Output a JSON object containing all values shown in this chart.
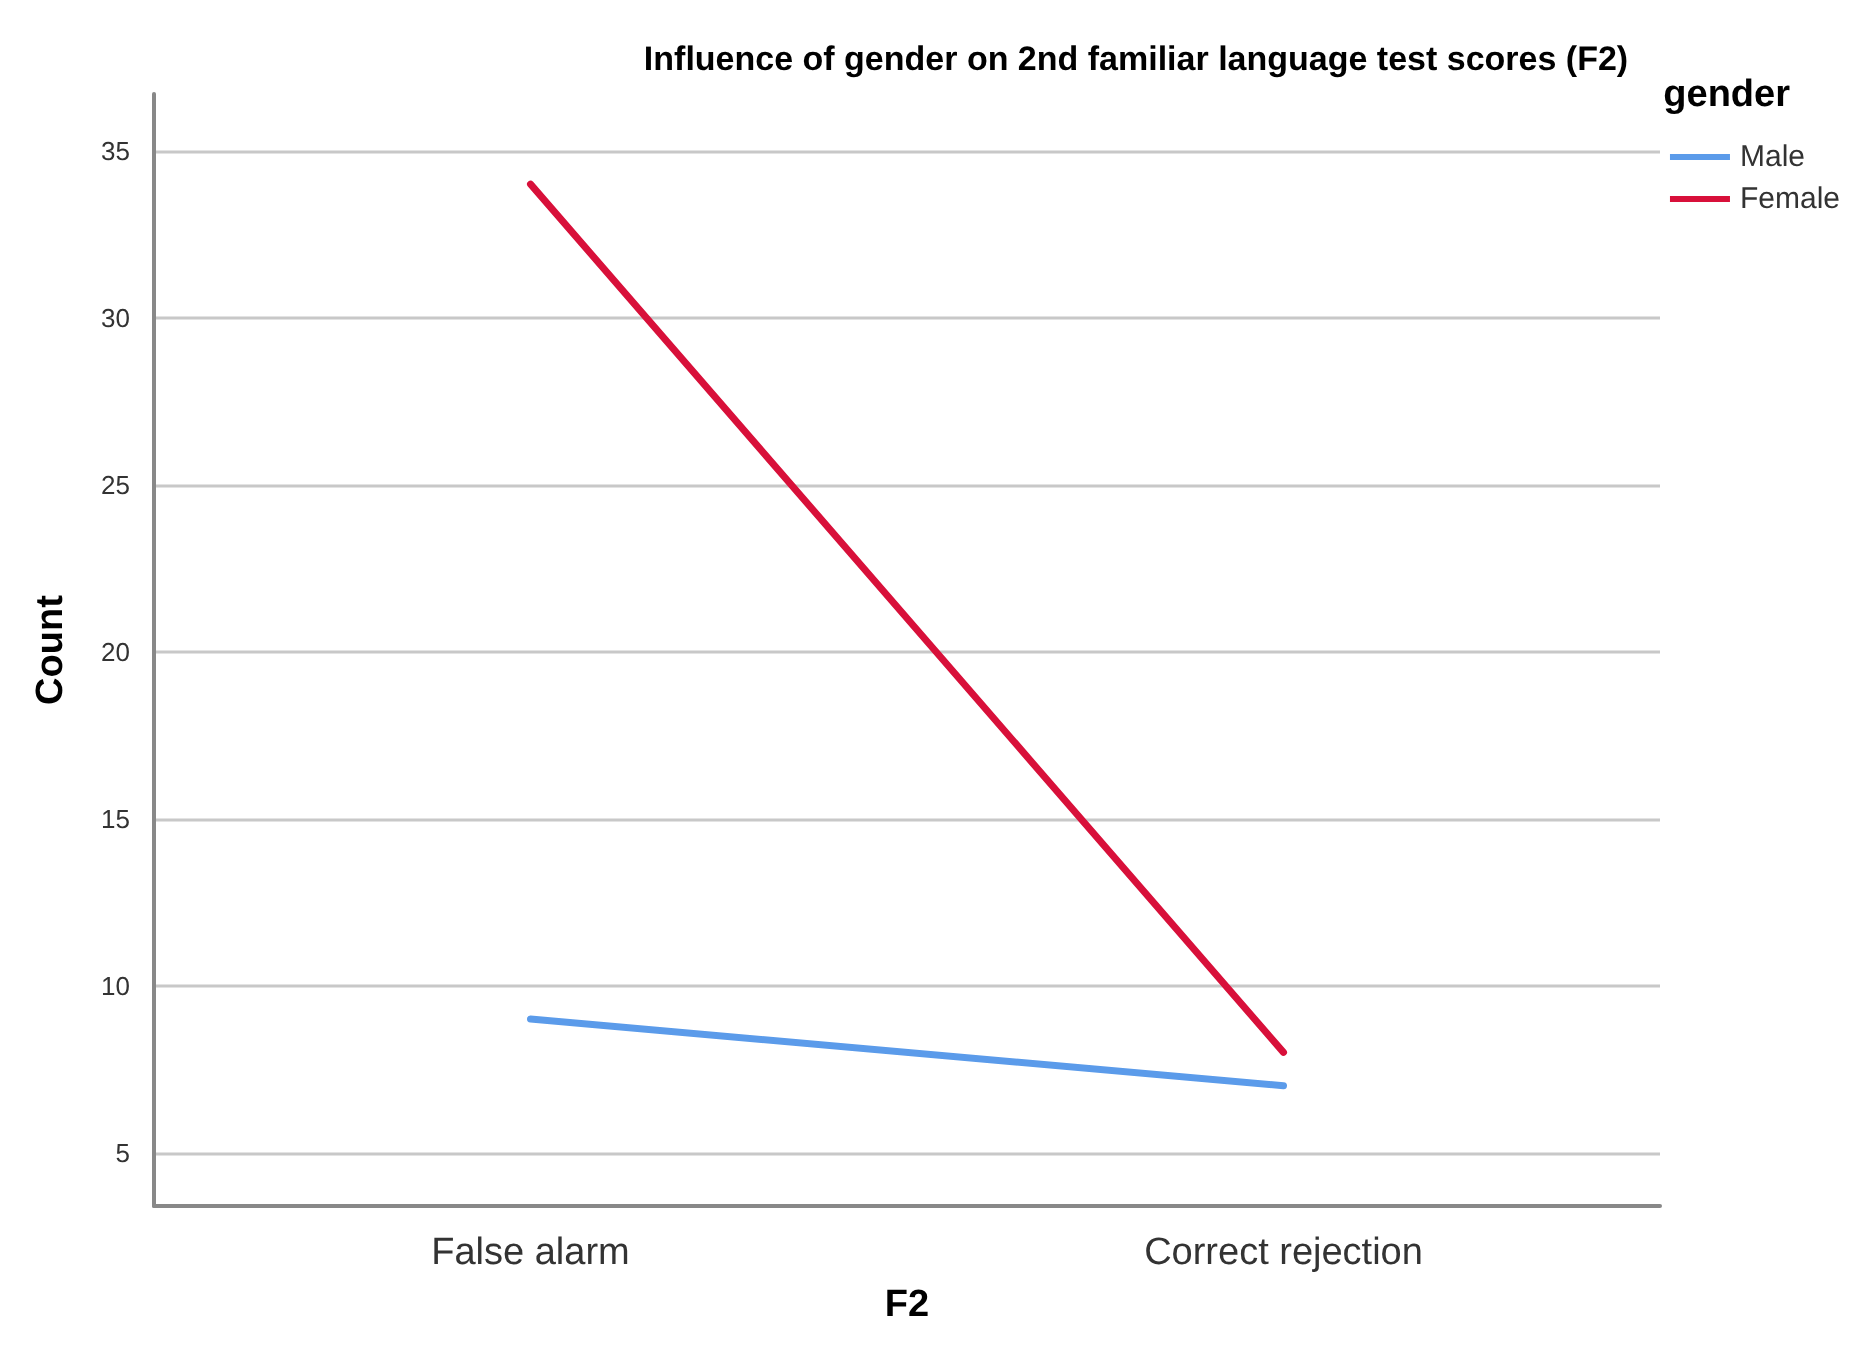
{
  "chart_data": {
    "type": "line",
    "title": "Influence of gender on 2nd familiar language test scores (F2)",
    "xlabel": "F2",
    "ylabel": "Count",
    "legend_title": "gender",
    "categories": [
      "False alarm",
      "Correct rejection"
    ],
    "series": [
      {
        "name": "Male",
        "color": "#5b9bea",
        "values": [
          9,
          7
        ]
      },
      {
        "name": "Female",
        "color": "#d8103a",
        "values": [
          34,
          8
        ]
      }
    ],
    "ylim": [
      3.4,
      36.7
    ],
    "yticks": [
      5,
      10,
      15,
      20,
      25,
      30,
      35
    ],
    "grid": "y",
    "legend": "top right",
    "marker": "none",
    "line_style": "solid"
  }
}
